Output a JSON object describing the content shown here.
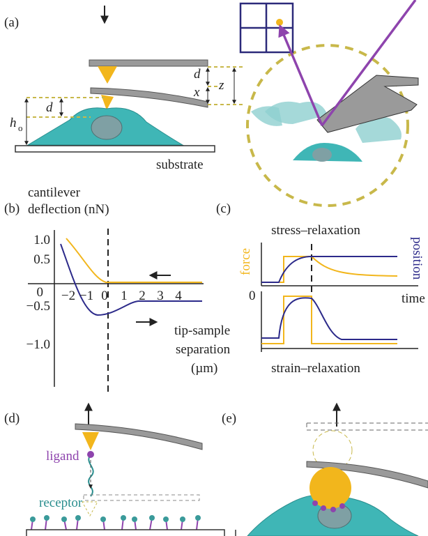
{
  "panels": {
    "a": {
      "label": "(a)",
      "d_right": "d",
      "x": "x",
      "z": "z",
      "d_left": "d",
      "h": "h",
      "h_sub": "o",
      "substrate": "substrate"
    },
    "b": {
      "label": "(b)",
      "ylabel": [
        "cantilever",
        "deflection (nN)"
      ],
      "yticks": [
        "1.0",
        "0.5",
        "0",
        "−0.5",
        "−1.0"
      ],
      "xticks": [
        "−2",
        "−1",
        "0",
        "1",
        "2",
        "3",
        "4"
      ],
      "xlabel": [
        "tip-sample",
        "separation",
        "(µm)"
      ]
    },
    "c": {
      "label": "(c)",
      "top_title": "stress–relaxation",
      "force": "force",
      "position": "position",
      "zero": "0",
      "time": "time",
      "bottom_title": "strain–relaxation"
    },
    "d": {
      "label": "(d)",
      "ligand": "ligand",
      "receptor": "receptor"
    },
    "e": {
      "label": "(e)"
    }
  }
}
